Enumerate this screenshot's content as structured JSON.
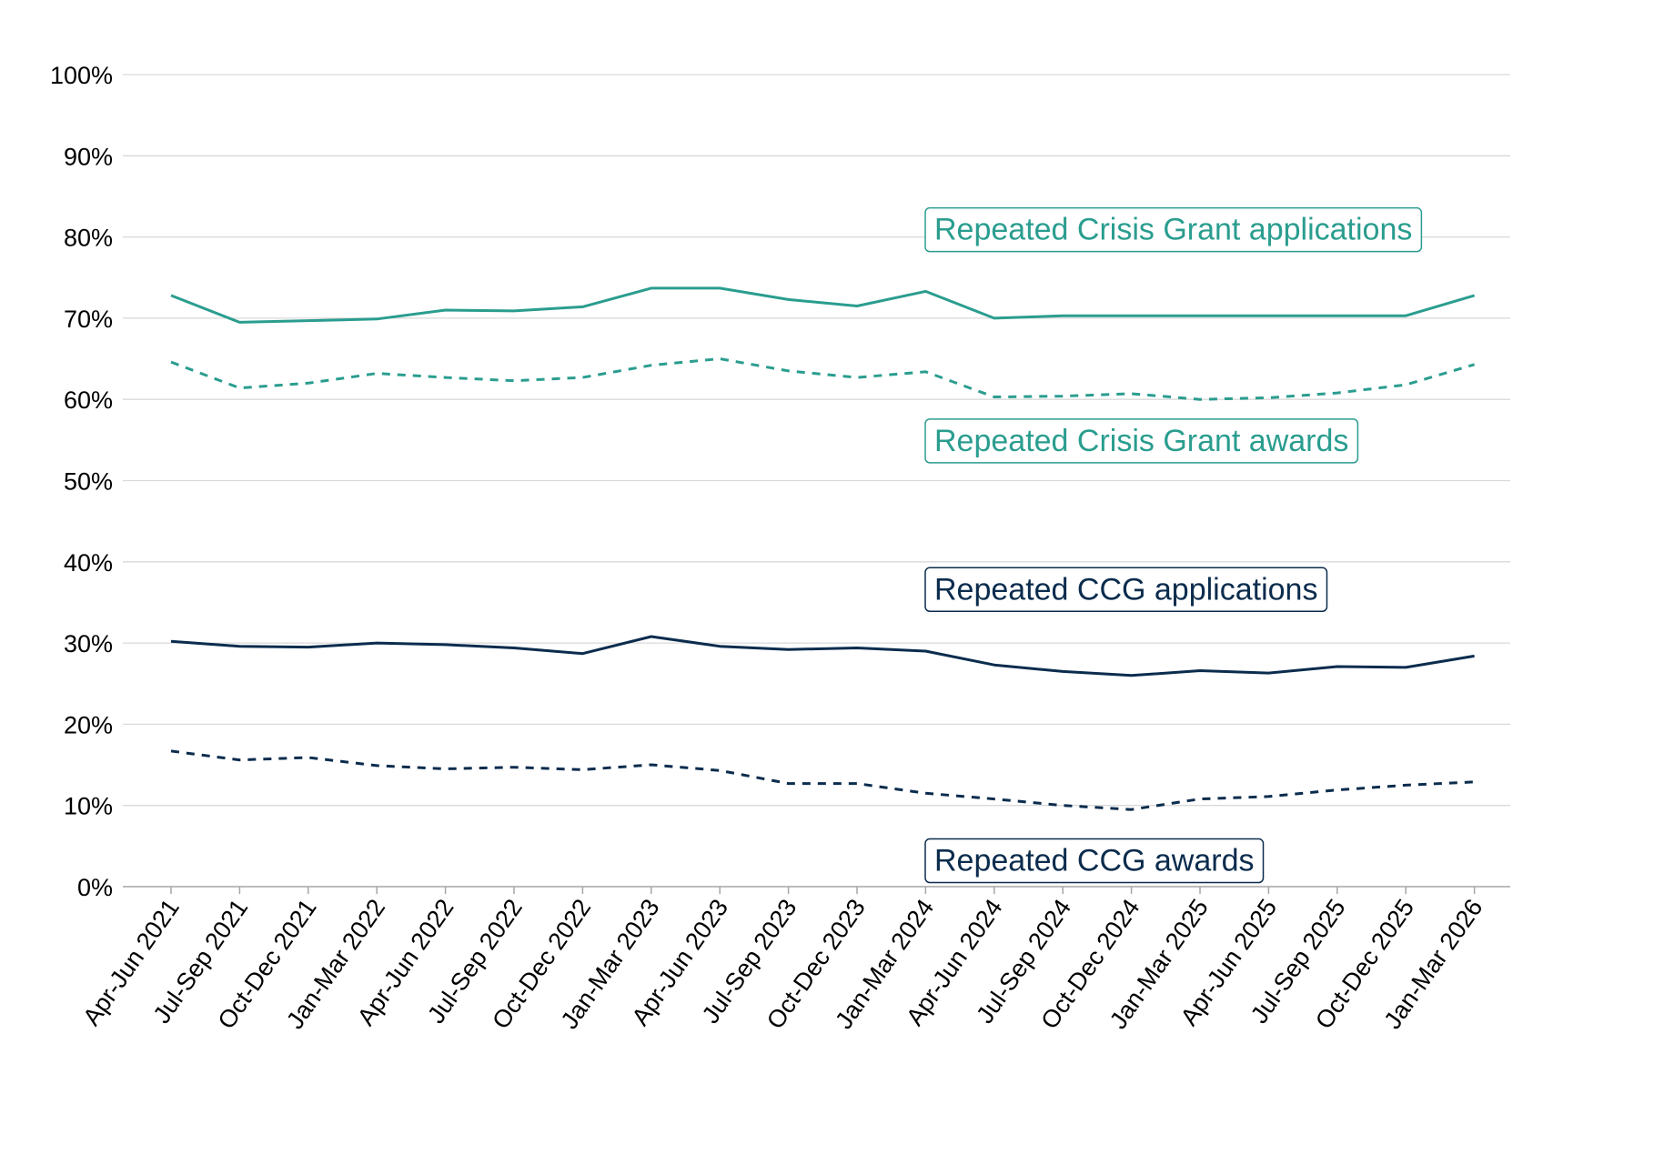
{
  "chart_data": {
    "type": "line",
    "title": "",
    "xlabel": "",
    "ylabel": "",
    "ylim": [
      0,
      100
    ],
    "yticks": [
      "0%",
      "10%",
      "20%",
      "30%",
      "40%",
      "50%",
      "60%",
      "70%",
      "80%",
      "90%",
      "100%"
    ],
    "y_tick_values": [
      0,
      10,
      20,
      30,
      40,
      50,
      60,
      70,
      80,
      90,
      100
    ],
    "grid": true,
    "legend": "direct labels",
    "categories": [
      "Apr-Jun 2021",
      "Jul-Sep 2021",
      "Oct-Dec 2021",
      "Jan-Mar 2022",
      "Apr-Jun 2022",
      "Jul-Sep 2022",
      "Oct-Dec 2022",
      "Jan-Mar 2023",
      "Apr-Jun 2023",
      "Jul-Sep 2023",
      "Oct-Dec 2023",
      "Jan-Mar 2024",
      "Apr-Jun 2024",
      "Jul-Sep 2024",
      "Oct-Dec 2024",
      "Jan-Mar 2025",
      "Apr-Jun 2025",
      "Jul-Sep 2025",
      "Oct-Dec 2025",
      "Jan-Mar 2026"
    ],
    "series": [
      {
        "name": "Repeated Crisis Grant applications",
        "color": "#2a9d8f",
        "style": "solid",
        "label_y": 81,
        "values": [
          72.8,
          69.5,
          69.7,
          69.9,
          71.0,
          70.9,
          71.4,
          73.7,
          73.7,
          72.3,
          71.5,
          73.3,
          70.0,
          70.3,
          70.3,
          70.3,
          70.3,
          70.3,
          70.3,
          72.8
        ]
      },
      {
        "name": "Repeated Crisis Grant awards",
        "color": "#2a9d8f",
        "style": "dashed",
        "label_y": 55,
        "values": [
          64.6,
          61.4,
          62.0,
          63.2,
          62.7,
          62.3,
          62.7,
          64.2,
          65.0,
          63.5,
          62.7,
          63.4,
          60.3,
          60.4,
          60.7,
          60.0,
          60.2,
          60.8,
          61.8,
          64.3
        ]
      },
      {
        "name": "Repeated CCG applications",
        "color": "#0b2c4d",
        "style": "solid",
        "label_y": 36.7,
        "values": [
          30.2,
          29.6,
          29.5,
          30.0,
          29.8,
          29.4,
          28.7,
          30.8,
          29.6,
          29.2,
          29.4,
          29.0,
          27.3,
          26.5,
          26.0,
          26.6,
          26.3,
          27.1,
          27.0,
          28.4
        ]
      },
      {
        "name": "Repeated CCG awards",
        "color": "#0b2c4d",
        "style": "dashed",
        "label_y": 3.3,
        "values": [
          16.7,
          15.6,
          15.9,
          14.9,
          14.5,
          14.7,
          14.4,
          15.0,
          14.3,
          12.7,
          12.7,
          11.5,
          10.8,
          10.0,
          9.5,
          10.8,
          11.1,
          11.9,
          12.5,
          12.9
        ]
      }
    ]
  }
}
